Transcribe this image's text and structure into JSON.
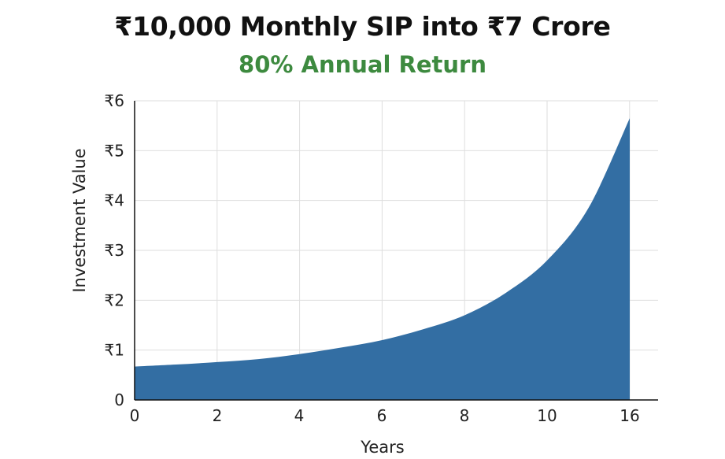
{
  "chart_data": {
    "type": "area",
    "title": "₹10,000 Monthly SIP into ₹7 Crore",
    "subtitle": "80% Annual Return",
    "xlabel": "Years",
    "ylabel": "Investment Value",
    "x_ticks": [
      "0",
      "2",
      "4",
      "6",
      "8",
      "10",
      "16"
    ],
    "y_ticks": [
      "0",
      "₹1",
      "₹2",
      "₹3",
      "₹4",
      "₹5",
      "₹6"
    ],
    "ylim": [
      0,
      6
    ],
    "grid": true,
    "color": "#336ea3",
    "series": [
      {
        "x": [
          0,
          1,
          2,
          3,
          4,
          5,
          6,
          7,
          8,
          9,
          10,
          11,
          12
        ],
        "y": [
          0.67,
          0.71,
          0.76,
          0.82,
          0.92,
          1.05,
          1.2,
          1.42,
          1.7,
          2.15,
          2.8,
          3.85,
          5.65
        ]
      }
    ]
  }
}
